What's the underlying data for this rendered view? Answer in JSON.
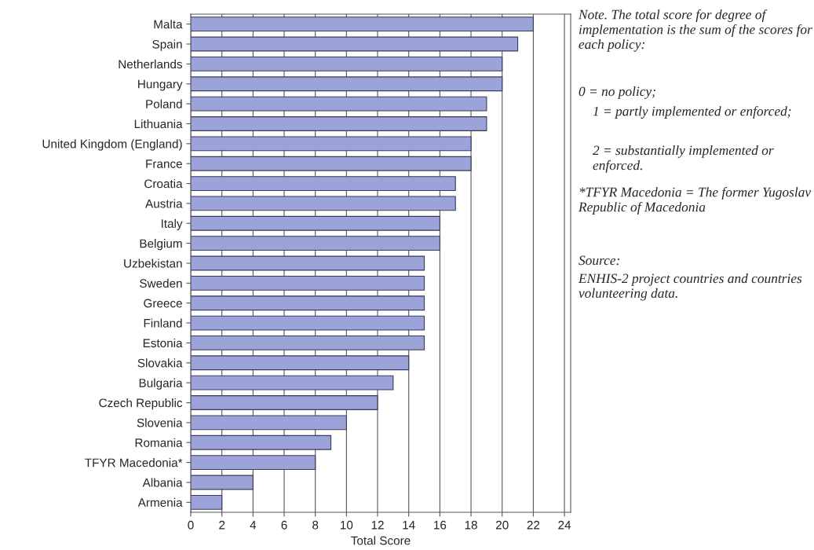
{
  "chart_data": {
    "type": "bar",
    "orientation": "horizontal",
    "categories": [
      "Malta",
      "Spain",
      "Netherlands",
      "Hungary",
      "Poland",
      "Lithuania",
      "United Kingdom (England)",
      "France",
      "Croatia",
      "Austria",
      "Italy",
      "Belgium",
      "Uzbekistan",
      "Sweden",
      "Greece",
      "Finland",
      "Estonia",
      "Slovakia",
      "Bulgaria",
      "Czech Republic",
      "Slovenia",
      "Romania",
      "TFYR Macedonia*",
      "Albania",
      "Armenia"
    ],
    "values": [
      22,
      21,
      20,
      20,
      19,
      19,
      18,
      18,
      17,
      17,
      16,
      16,
      15,
      15,
      15,
      15,
      15,
      14,
      13,
      12,
      10,
      9,
      8,
      4,
      2
    ],
    "color": "#9ca3d8",
    "xlabel": "Total Score",
    "xlim": [
      0,
      24.4
    ],
    "xticks": [
      0,
      2,
      4,
      6,
      8,
      10,
      12,
      14,
      16,
      18,
      20,
      22,
      24
    ],
    "grid": "x",
    "annotations": [
      "Note. The total score for degree of implementation is the sum of the scores for each policy:",
      "0 = no policy;",
      "1 = partly implemented or enforced;",
      "2 = substantially implemented or enforced.",
      "*TFYR Macedonia = The former Yugoslav Republic of Macedonia",
      "Source:",
      "ENHIS-2 project countries and countries volunteering data."
    ]
  }
}
